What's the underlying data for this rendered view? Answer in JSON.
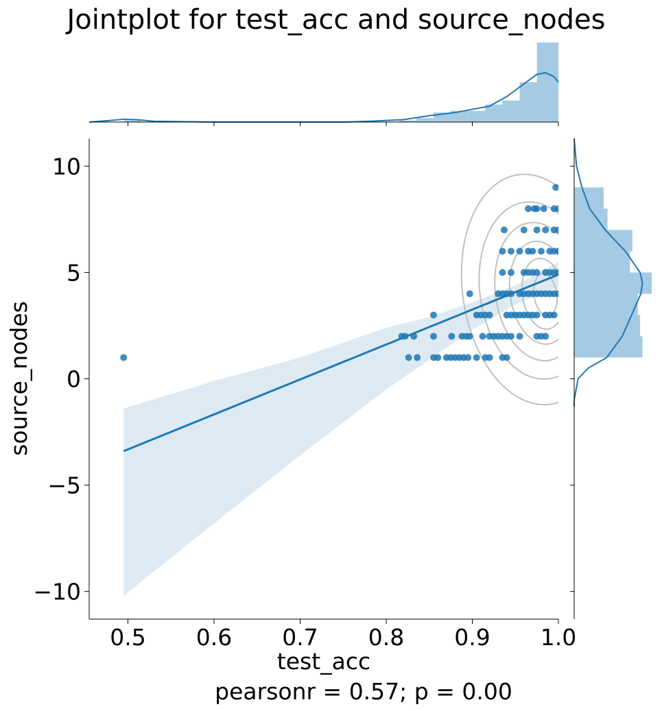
{
  "chart_data": {
    "type": "scatter",
    "title": "Jointplot for test_acc and source_nodes",
    "xlabel": "test_acc",
    "ylabel": "source_nodes",
    "annotation": "pearsonr = 0.57; p = 0.00",
    "xlim": [
      0.455,
      1.0
    ],
    "ylim": [
      -11.3,
      11.3
    ],
    "xticks": [
      0.5,
      0.6,
      0.7,
      0.8,
      0.9,
      1.0
    ],
    "xtick_labels": [
      "0.5",
      "0.6",
      "0.7",
      "0.8",
      "0.9",
      "1.0"
    ],
    "yticks": [
      10,
      5,
      0,
      -5,
      -10
    ],
    "ytick_labels": [
      "10",
      "5",
      "0",
      "−5",
      "−10"
    ],
    "grid": false,
    "colors": {
      "points": "#1f77b4",
      "band": "#a6c8e3",
      "hist": "#7fb3d8",
      "kde": "#1f77b4",
      "contour": "#c0c0c0"
    },
    "points": [
      {
        "x": 0.495,
        "y": 1
      },
      {
        "x": 0.826,
        "y": 1
      },
      {
        "x": 0.836,
        "y": 1
      },
      {
        "x": 0.855,
        "y": 1
      },
      {
        "x": 0.86,
        "y": 1
      },
      {
        "x": 0.87,
        "y": 1
      },
      {
        "x": 0.875,
        "y": 1
      },
      {
        "x": 0.88,
        "y": 1
      },
      {
        "x": 0.885,
        "y": 1
      },
      {
        "x": 0.89,
        "y": 1
      },
      {
        "x": 0.895,
        "y": 1
      },
      {
        "x": 0.905,
        "y": 1
      },
      {
        "x": 0.915,
        "y": 1
      },
      {
        "x": 0.92,
        "y": 1
      },
      {
        "x": 0.935,
        "y": 1
      },
      {
        "x": 0.94,
        "y": 1
      },
      {
        "x": 0.818,
        "y": 2
      },
      {
        "x": 0.822,
        "y": 2
      },
      {
        "x": 0.832,
        "y": 2
      },
      {
        "x": 0.855,
        "y": 2
      },
      {
        "x": 0.876,
        "y": 2
      },
      {
        "x": 0.888,
        "y": 2
      },
      {
        "x": 0.893,
        "y": 2
      },
      {
        "x": 0.897,
        "y": 2
      },
      {
        "x": 0.912,
        "y": 2
      },
      {
        "x": 0.92,
        "y": 2
      },
      {
        "x": 0.925,
        "y": 2
      },
      {
        "x": 0.93,
        "y": 2
      },
      {
        "x": 0.935,
        "y": 2
      },
      {
        "x": 0.94,
        "y": 2
      },
      {
        "x": 0.945,
        "y": 2
      },
      {
        "x": 0.955,
        "y": 2
      },
      {
        "x": 0.975,
        "y": 2
      },
      {
        "x": 0.98,
        "y": 2
      },
      {
        "x": 0.985,
        "y": 2
      },
      {
        "x": 0.855,
        "y": 3
      },
      {
        "x": 0.905,
        "y": 3
      },
      {
        "x": 0.91,
        "y": 3
      },
      {
        "x": 0.915,
        "y": 3
      },
      {
        "x": 0.92,
        "y": 3
      },
      {
        "x": 0.94,
        "y": 3
      },
      {
        "x": 0.945,
        "y": 3
      },
      {
        "x": 0.95,
        "y": 3
      },
      {
        "x": 0.955,
        "y": 3
      },
      {
        "x": 0.96,
        "y": 3
      },
      {
        "x": 0.965,
        "y": 3
      },
      {
        "x": 0.97,
        "y": 3
      },
      {
        "x": 0.975,
        "y": 3
      },
      {
        "x": 0.985,
        "y": 3
      },
      {
        "x": 0.99,
        "y": 3
      },
      {
        "x": 0.995,
        "y": 3
      },
      {
        "x": 0.897,
        "y": 4
      },
      {
        "x": 0.93,
        "y": 4
      },
      {
        "x": 0.935,
        "y": 4
      },
      {
        "x": 0.94,
        "y": 4
      },
      {
        "x": 0.945,
        "y": 4
      },
      {
        "x": 0.955,
        "y": 4
      },
      {
        "x": 0.96,
        "y": 4
      },
      {
        "x": 0.965,
        "y": 4
      },
      {
        "x": 0.97,
        "y": 4
      },
      {
        "x": 0.975,
        "y": 4
      },
      {
        "x": 0.98,
        "y": 4
      },
      {
        "x": 0.985,
        "y": 4
      },
      {
        "x": 0.99,
        "y": 4
      },
      {
        "x": 0.995,
        "y": 4
      },
      {
        "x": 1.0,
        "y": 4
      },
      {
        "x": 0.935,
        "y": 5
      },
      {
        "x": 0.945,
        "y": 5
      },
      {
        "x": 0.96,
        "y": 5
      },
      {
        "x": 0.965,
        "y": 5
      },
      {
        "x": 0.97,
        "y": 5
      },
      {
        "x": 0.975,
        "y": 5
      },
      {
        "x": 0.985,
        "y": 5
      },
      {
        "x": 0.99,
        "y": 5
      },
      {
        "x": 0.995,
        "y": 5
      },
      {
        "x": 1.0,
        "y": 5
      },
      {
        "x": 0.935,
        "y": 6
      },
      {
        "x": 0.945,
        "y": 6
      },
      {
        "x": 0.955,
        "y": 6
      },
      {
        "x": 0.965,
        "y": 6
      },
      {
        "x": 0.97,
        "y": 6
      },
      {
        "x": 0.98,
        "y": 6
      },
      {
        "x": 0.99,
        "y": 6
      },
      {
        "x": 0.995,
        "y": 6
      },
      {
        "x": 1.0,
        "y": 6
      },
      {
        "x": 0.937,
        "y": 7
      },
      {
        "x": 0.96,
        "y": 7
      },
      {
        "x": 0.975,
        "y": 7
      },
      {
        "x": 0.985,
        "y": 7
      },
      {
        "x": 0.995,
        "y": 7
      },
      {
        "x": 1.0,
        "y": 7
      },
      {
        "x": 0.965,
        "y": 8
      },
      {
        "x": 0.972,
        "y": 8
      },
      {
        "x": 0.975,
        "y": 8
      },
      {
        "x": 0.983,
        "y": 8
      },
      {
        "x": 0.995,
        "y": 8
      },
      {
        "x": 1.0,
        "y": 8
      },
      {
        "x": 0.997,
        "y": 9
      }
    ],
    "regression": {
      "x": [
        0.495,
        1.0
      ],
      "y": [
        -3.4,
        4.9
      ]
    },
    "ci_band": [
      {
        "x": 0.495,
        "lo": -10.2,
        "hi": -1.4
      },
      {
        "x": 0.6,
        "lo": -6.8,
        "hi": -0.1
      },
      {
        "x": 0.7,
        "lo": -3.6,
        "hi": 1.0
      },
      {
        "x": 0.8,
        "lo": -0.5,
        "hi": 2.4
      },
      {
        "x": 0.85,
        "lo": 0.9,
        "hi": 2.9
      },
      {
        "x": 0.9,
        "lo": 2.3,
        "hi": 3.6
      },
      {
        "x": 0.95,
        "lo": 3.5,
        "hi": 4.4
      },
      {
        "x": 1.0,
        "lo": 4.3,
        "hi": 5.5
      }
    ],
    "x_marginal": {
      "bins": [
        0.495,
        0.515,
        0.535,
        0.555,
        0.575,
        0.595,
        0.615,
        0.635,
        0.655,
        0.675,
        0.695,
        0.715,
        0.735,
        0.755,
        0.775,
        0.795,
        0.815,
        0.835,
        0.855,
        0.875,
        0.895,
        0.915,
        0.935,
        0.955,
        0.975,
        1.0
      ],
      "heights": [
        0.02,
        0,
        0,
        0,
        0,
        0,
        0,
        0,
        0,
        0,
        0,
        0,
        0,
        0,
        0,
        0,
        0.02,
        0.05,
        0.12,
        0.14,
        0.14,
        0.22,
        0.27,
        0.5,
        1.0
      ],
      "kde": [
        [
          0.455,
          0.0
        ],
        [
          0.48,
          0.02
        ],
        [
          0.495,
          0.035
        ],
        [
          0.51,
          0.03
        ],
        [
          0.53,
          0.01
        ],
        [
          0.6,
          0.0
        ],
        [
          0.75,
          0.0
        ],
        [
          0.78,
          0.01
        ],
        [
          0.82,
          0.03
        ],
        [
          0.85,
          0.08
        ],
        [
          0.88,
          0.12
        ],
        [
          0.9,
          0.16
        ],
        [
          0.92,
          0.2
        ],
        [
          0.94,
          0.32
        ],
        [
          0.96,
          0.48
        ],
        [
          0.975,
          0.6
        ],
        [
          0.985,
          0.62
        ],
        [
          0.995,
          0.57
        ],
        [
          1.0,
          0.5
        ]
      ]
    },
    "y_marginal": {
      "bins": [
        1,
        2,
        3,
        4,
        5,
        6,
        7,
        8,
        9
      ],
      "widths": [
        0.88,
        0.85,
        0.82,
        1.0,
        0.72,
        0.75,
        0.43,
        0.38
      ],
      "kde": [
        [
          -1.3,
          0.0
        ],
        [
          -1.0,
          0.0
        ],
        [
          0.0,
          0.05
        ],
        [
          0.5,
          0.18
        ],
        [
          1.0,
          0.42
        ],
        [
          2.0,
          0.62
        ],
        [
          3.0,
          0.74
        ],
        [
          4.0,
          0.86
        ],
        [
          4.5,
          0.88
        ],
        [
          5.0,
          0.85
        ],
        [
          6.0,
          0.66
        ],
        [
          7.0,
          0.4
        ],
        [
          8.0,
          0.2
        ],
        [
          9.0,
          0.1
        ],
        [
          10.0,
          0.03
        ],
        [
          11.3,
          0.0
        ]
      ]
    }
  }
}
